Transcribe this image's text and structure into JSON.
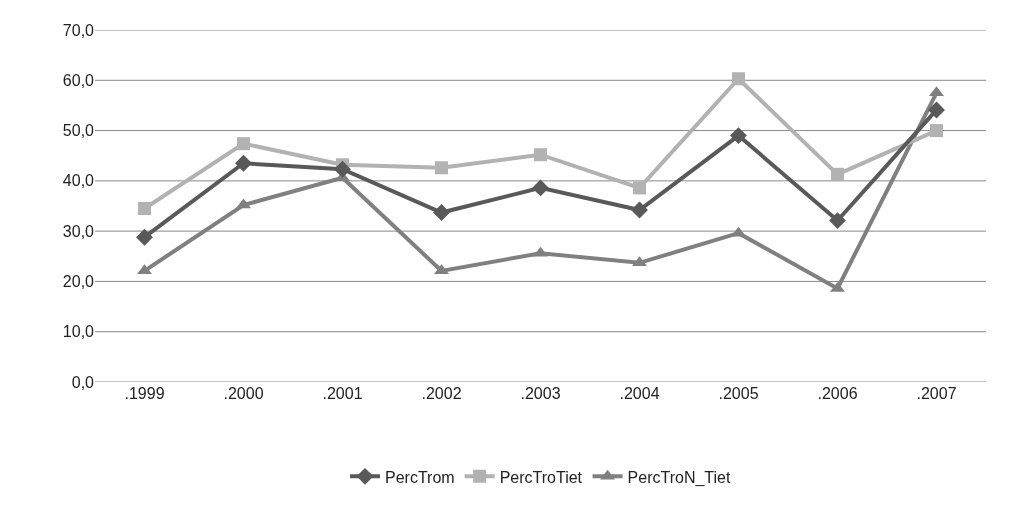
{
  "chart_data": {
    "type": "line",
    "categories": [
      ".1999",
      ".2000",
      ".2001",
      ".2002",
      ".2003",
      ".2004",
      ".2005",
      ".2006",
      ".2007"
    ],
    "series": [
      {
        "name": "PercTrom",
        "color": "#595959",
        "marker": "diamond",
        "values": [
          28.8,
          43.5,
          42.3,
          33.7,
          38.6,
          34.2,
          49.0,
          32.1,
          54.1
        ]
      },
      {
        "name": "PercTroTiet",
        "color": "#b2b2b2",
        "marker": "square",
        "values": [
          34.5,
          47.4,
          43.2,
          42.6,
          45.2,
          38.6,
          60.3,
          41.3,
          50.0
        ]
      },
      {
        "name": "PercTroN_Tiet",
        "color": "#808080",
        "marker": "triangle",
        "values": [
          22.1,
          35.2,
          40.6,
          22.1,
          25.6,
          23.7,
          29.6,
          18.6,
          57.5
        ]
      }
    ],
    "ylim": [
      0,
      70
    ],
    "yticks": [
      {
        "value": 0,
        "label": "0,0"
      },
      {
        "value": 10,
        "label": "10,0"
      },
      {
        "value": 20,
        "label": "20,0"
      },
      {
        "value": 30,
        "label": "30,0"
      },
      {
        "value": 40,
        "label": "40,0"
      },
      {
        "value": 50,
        "label": "50,0"
      },
      {
        "value": 60,
        "label": "60,0"
      },
      {
        "value": 70,
        "label": "70,0"
      }
    ],
    "grid": "y",
    "legend": "bottom",
    "line_style": "solid"
  }
}
